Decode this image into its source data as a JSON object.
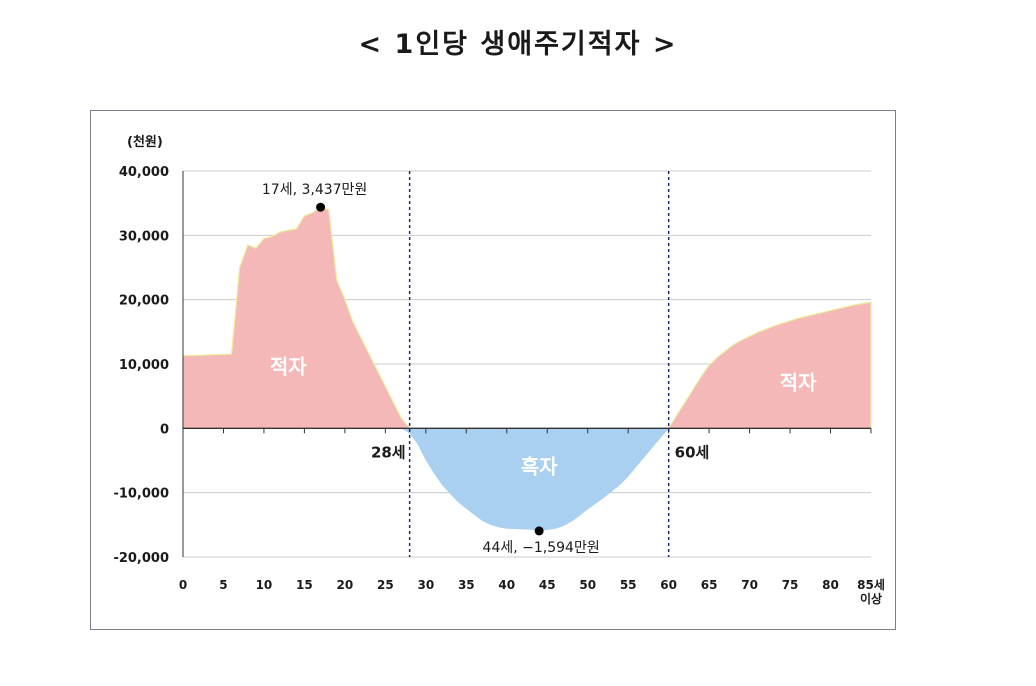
{
  "page": {
    "title": "< 1인당 생애주기적자 >"
  },
  "chart_data": {
    "type": "area",
    "title": "< 1인당 생애주기적자 >",
    "unit_label": "(천원)",
    "xlabel": "",
    "ylabel": "",
    "xlim": [
      0,
      85
    ],
    "ylim": [
      -20000,
      40000
    ],
    "y_ticks": [
      40000,
      30000,
      20000,
      10000,
      0,
      -10000,
      -20000
    ],
    "y_tick_labels": [
      "40,000",
      "30,000",
      "20,000",
      "10,000",
      "0",
      "-10,000",
      "-20,000"
    ],
    "x_ticks": [
      0,
      5,
      10,
      15,
      20,
      25,
      30,
      35,
      40,
      45,
      50,
      55,
      60,
      65,
      70,
      75,
      80,
      85
    ],
    "x_tick_labels": [
      "0",
      "5",
      "10",
      "15",
      "20",
      "25",
      "30",
      "35",
      "40",
      "45",
      "50",
      "55",
      "60",
      "65",
      "70",
      "75",
      "80",
      "85세"
    ],
    "x_tick_sublabel": "이상",
    "grid": true,
    "colors": {
      "deficit": "#f5b8b8",
      "deficit_edge": "#ecec9a",
      "surplus": "#a9d0f0",
      "grid": "#cccccc",
      "axis": "#333333",
      "divider": "#1f2d6e"
    },
    "series": [
      {
        "x": [
          0,
          1,
          2,
          3,
          4,
          5,
          6,
          7,
          8,
          9,
          10,
          11,
          12,
          13,
          14,
          15,
          16,
          17,
          18,
          19,
          20,
          21,
          22,
          23,
          24,
          25,
          26,
          27,
          28,
          29,
          30,
          31,
          32,
          33,
          34,
          35,
          36,
          37,
          38,
          39,
          40,
          41,
          42,
          43,
          44,
          45,
          46,
          47,
          48,
          49,
          50,
          51,
          52,
          53,
          54,
          55,
          56,
          57,
          58,
          59,
          60,
          61,
          62,
          63,
          64,
          65,
          66,
          67,
          68,
          69,
          70,
          71,
          72,
          73,
          74,
          75,
          76,
          77,
          78,
          79,
          80,
          81,
          82,
          83,
          84,
          85
        ],
        "values": [
          11300,
          11300,
          11350,
          11400,
          11450,
          11500,
          11550,
          25000,
          28500,
          28000,
          29500,
          29800,
          30500,
          30800,
          31000,
          33000,
          33500,
          34370,
          34000,
          23000,
          20000,
          16500,
          14000,
          11500,
          9000,
          6500,
          4000,
          1500,
          -800,
          -2500,
          -5000,
          -7000,
          -8800,
          -10200,
          -11500,
          -12500,
          -13500,
          -14400,
          -15000,
          -15400,
          -15600,
          -15650,
          -15700,
          -15750,
          -15940,
          -15800,
          -15600,
          -15200,
          -14500,
          -13600,
          -12600,
          -11700,
          -10800,
          -9800,
          -8800,
          -7500,
          -6000,
          -4500,
          -3000,
          -1500,
          0,
          2000,
          4000,
          6000,
          8000,
          9800,
          11000,
          12000,
          13000,
          13700,
          14300,
          14900,
          15400,
          15900,
          16300,
          16700,
          17100,
          17400,
          17700,
          18000,
          18300,
          18600,
          18900,
          19200,
          19400,
          19600
        ]
      }
    ],
    "dividers": [
      {
        "x": 28,
        "label": "28세"
      },
      {
        "x": 60,
        "label": "60세"
      }
    ],
    "annotations": [
      {
        "x": 17,
        "y": 34370,
        "label": "17세, 3,437만원"
      },
      {
        "x": 44,
        "y": -15940,
        "label": "44세, −1,594만원"
      }
    ],
    "region_labels": [
      {
        "x": 13,
        "y": 8500,
        "label": "적자"
      },
      {
        "x": 44,
        "y": -7000,
        "label": "흑자"
      },
      {
        "x": 76,
        "y": 6000,
        "label": "적자"
      }
    ]
  }
}
